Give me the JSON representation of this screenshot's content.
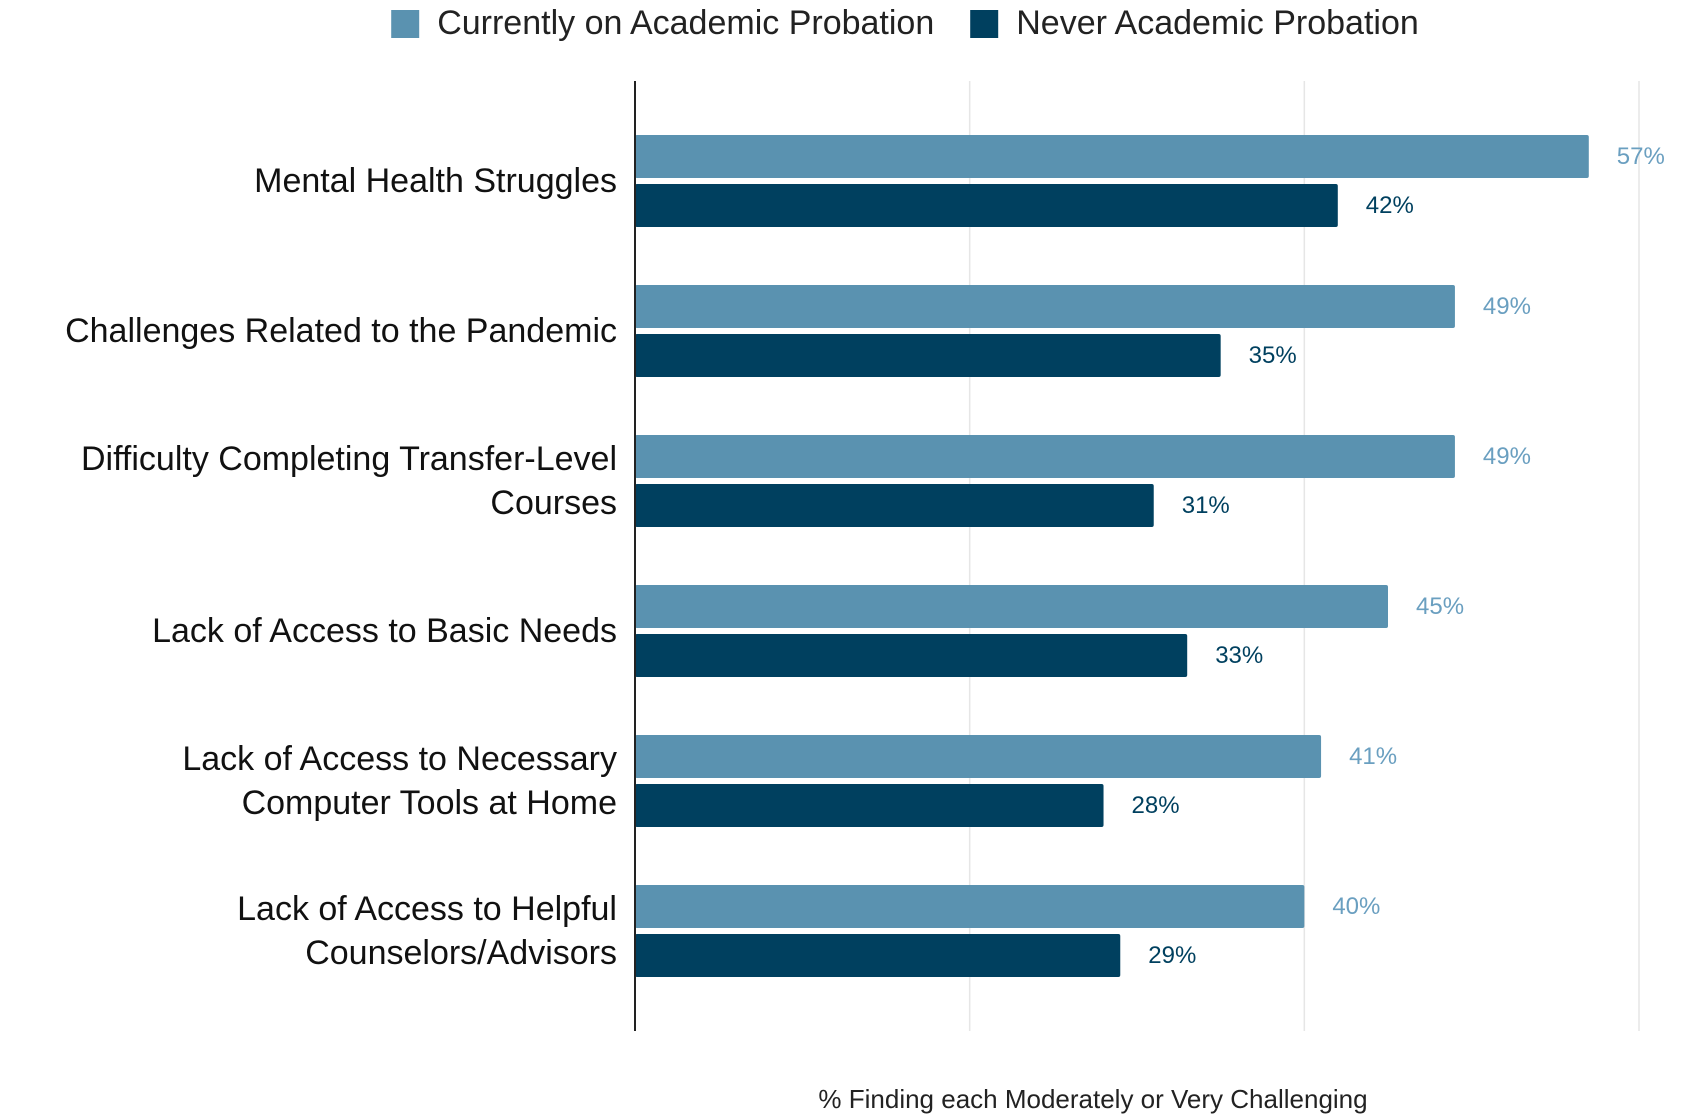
{
  "chart_data": {
    "type": "hbar",
    "x_label": "% Finding each Moderately or Very Challenging",
    "categories": [
      "Mental Health Struggles",
      "Challenges Related to the Pandemic",
      "Difficulty Completing Transfer-Level\nCourses",
      "Lack of Access to Basic Needs",
      "Lack of Access to Necessary\nComputer Tools at Home",
      "Lack of Access to Helpful\nCounselors/Advisors"
    ],
    "series": [
      {
        "name": "Currently on Academic Probation",
        "color": "#5a92b0",
        "values": [
          57,
          49,
          49,
          45,
          41,
          40
        ],
        "value_labels": [
          "57%",
          "49%",
          "49%",
          "45%",
          "41%",
          "40%"
        ]
      },
      {
        "name": "Never Academic Probation",
        "color": "#00405f",
        "values": [
          42,
          35,
          31,
          33,
          28,
          29
        ],
        "value_labels": [
          "42%",
          "35%",
          "31%",
          "33%",
          "28%",
          "29%"
        ]
      }
    ],
    "xlim": [
      0,
      60
    ],
    "xticks": [
      0,
      20,
      40,
      60
    ],
    "grid": true,
    "legend": "top"
  }
}
